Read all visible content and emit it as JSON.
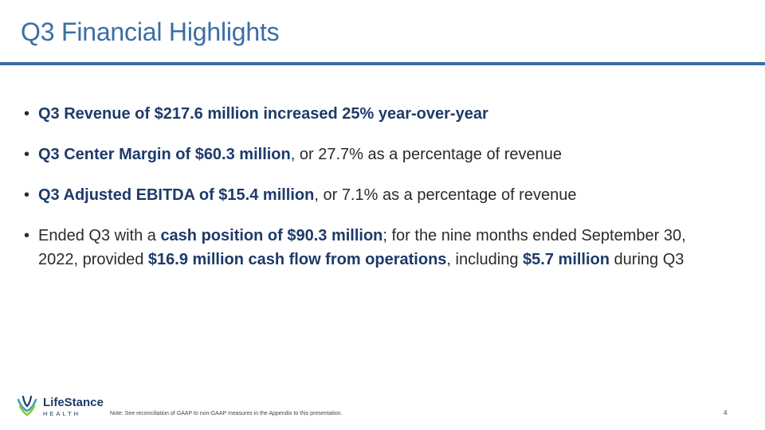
{
  "slide": {
    "title": "Q3 Financial Highlights",
    "bullets": [
      [
        {
          "text": "Q3 Revenue of $217.6 million increased 25% year-over-year",
          "bold": true
        }
      ],
      [
        {
          "text": "Q3 Center Margin of $60.3 million",
          "bold": true
        },
        {
          "text": ", or 27.7% as a percentage of revenue",
          "bold": false
        }
      ],
      [
        {
          "text": "Q3 Adjusted EBITDA of $15.4 million",
          "bold": true
        },
        {
          "text": ", or 7.1% as a percentage of revenue",
          "bold": false
        }
      ],
      [
        {
          "text": "Ended Q3 with a ",
          "bold": false
        },
        {
          "text": "cash position of $90.3 million",
          "bold": true
        },
        {
          "text": "; for the nine months ended September 30, 2022, provided ",
          "bold": false
        },
        {
          "text": "$16.9 million cash flow from operations",
          "bold": true
        },
        {
          "text": ", including ",
          "bold": false
        },
        {
          "text": "$5.7 million",
          "bold": true
        },
        {
          "text": " during Q3",
          "bold": false
        }
      ]
    ],
    "bullet_glyph": "•"
  },
  "footer": {
    "logo_name": "LifeStance",
    "logo_sub": "HEALTH",
    "note": "Note:  See reconciliation of GAAP to non-GAAP measures in the Appendix to this presentation.",
    "page_number": "4"
  },
  "colors": {
    "title": "#3a6ea5",
    "bold_text": "#1e3a6a",
    "logo_teal": "#3aa6b9",
    "logo_green": "#8cc63f",
    "logo_navy": "#1f3b63"
  }
}
